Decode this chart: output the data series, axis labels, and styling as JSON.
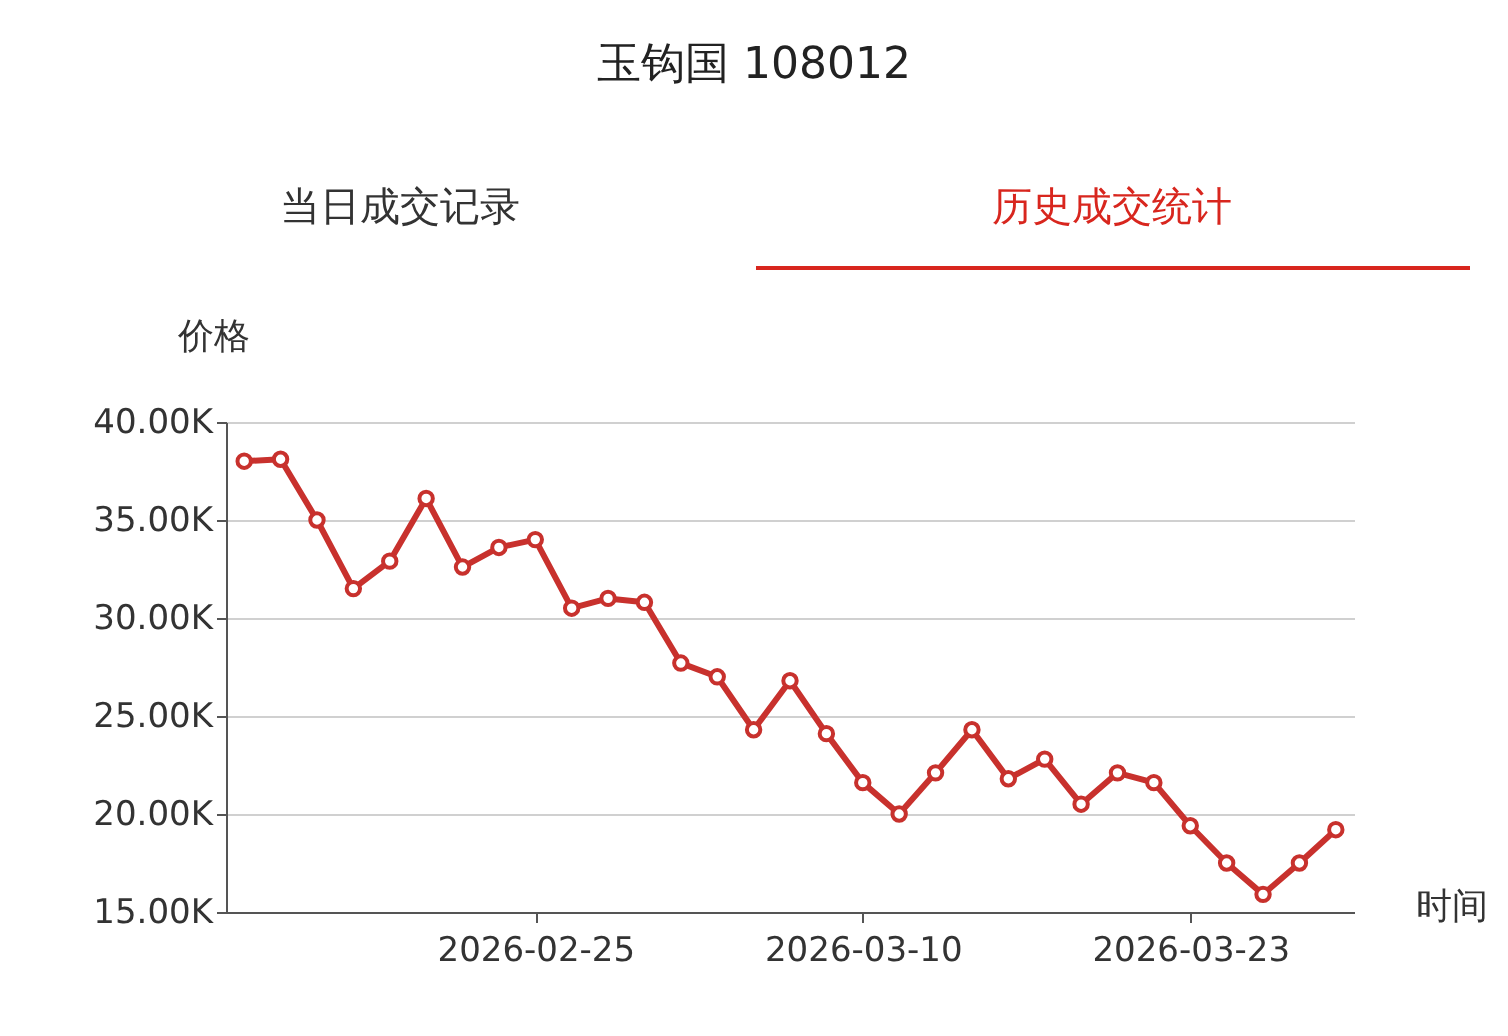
{
  "chart_data": {
    "type": "line",
    "title": "玉钩国 108012",
    "annotations": [
      "当日成交记录",
      "历史成交统计"
    ],
    "xlabel": "时间",
    "ylabel": "价格",
    "categories": [
      null,
      null,
      null,
      null,
      null,
      null,
      null,
      null,
      "2026-02-25",
      null,
      null,
      null,
      null,
      null,
      null,
      null,
      null,
      "2026-03-10",
      null,
      null,
      null,
      null,
      null,
      null,
      null,
      null,
      "2026-03-23",
      null,
      null,
      null,
      null
    ],
    "series": [
      {
        "color": "#c8312d",
        "values": [
          38000,
          38100,
          35000,
          31500,
          32900,
          36100,
          32600,
          33600,
          34000,
          30500,
          31000,
          30800,
          27700,
          27000,
          24300,
          26800,
          24100,
          21600,
          20000,
          22100,
          24300,
          21800,
          22800,
          20500,
          22100,
          21600,
          19400,
          17500,
          15900,
          17500,
          19200
        ]
      }
    ],
    "ylim": [
      15000,
      40000
    ],
    "yticks": [
      {
        "value": 15000,
        "label": "15.00K"
      },
      {
        "value": 20000,
        "label": "20.00K"
      },
      {
        "value": 25000,
        "label": "25.00K"
      },
      {
        "value": 30000,
        "label": "30.00K"
      },
      {
        "value": 35000,
        "label": "35.00K"
      },
      {
        "value": 40000,
        "label": "40.00K"
      }
    ],
    "grid": "y",
    "marker": "circle",
    "line_style": "solid"
  }
}
